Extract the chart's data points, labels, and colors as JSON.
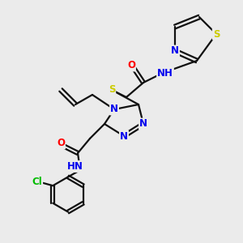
{
  "bg_color": "#ebebeb",
  "atom_colors": {
    "N": "#0000ee",
    "O": "#ff0000",
    "S": "#cccc00",
    "Cl": "#00bb00",
    "C": "#111111",
    "H": "#777777"
  },
  "bond_color": "#111111",
  "bond_width": 1.6,
  "font_size_atom": 8.5,
  "xlim": [
    0,
    10
  ],
  "ylim": [
    0,
    10
  ]
}
